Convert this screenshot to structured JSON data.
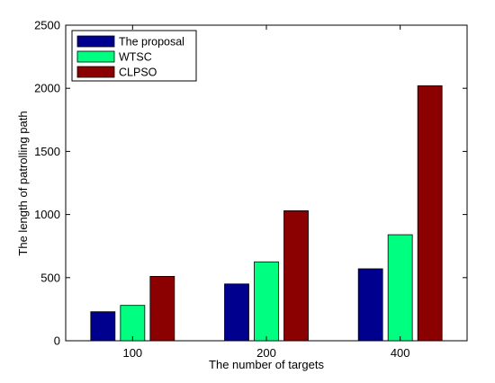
{
  "chart_data": {
    "type": "bar",
    "categories": [
      "100",
      "200",
      "400"
    ],
    "series": [
      {
        "name": "The proposal",
        "values": [
          230,
          450,
          570
        ],
        "color": "#00008f"
      },
      {
        "name": "WTSC",
        "values": [
          280,
          625,
          840
        ],
        "color": "#00ff80"
      },
      {
        "name": "CLPSO",
        "values": [
          510,
          1030,
          2020
        ],
        "color": "#8b0000"
      }
    ],
    "title": "",
    "xlabel": "The number of targets",
    "ylabel": "The length of patrolling path",
    "ylim": [
      0,
      2500
    ],
    "yticks": [
      "0",
      "500",
      "1000",
      "1500",
      "2000",
      "2500"
    ],
    "grid": false,
    "legend_position": "top-left"
  }
}
